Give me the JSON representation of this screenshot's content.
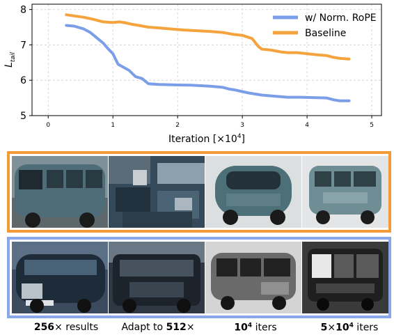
{
  "chart_data": {
    "type": "line",
    "xlabel": "Iteration [×10",
    "xlabel_exp": "4",
    "xlabel_end": "]",
    "ylabel_main": "L",
    "ylabel_sub": "tail",
    "xlim": [
      -0.25,
      5.15
    ],
    "ylim": [
      5.0,
      8.15
    ],
    "xticks": [
      0,
      1,
      2,
      3,
      4,
      5
    ],
    "yticks": [
      5,
      6,
      7,
      8
    ],
    "grid": true,
    "legend_position": "top-right",
    "series": [
      {
        "name": "w/ Norm. RoPE",
        "color": "#7b9ee8",
        "x": [
          0.28,
          0.4,
          0.55,
          0.65,
          0.75,
          0.85,
          0.92,
          1.0,
          1.08,
          1.15,
          1.25,
          1.35,
          1.45,
          1.55,
          1.7,
          1.9,
          2.2,
          2.5,
          2.7,
          2.8,
          2.9,
          3.0,
          3.1,
          3.3,
          3.5,
          3.7,
          3.9,
          4.1,
          4.3,
          4.4,
          4.5,
          4.65
        ],
        "y": [
          7.55,
          7.53,
          7.45,
          7.35,
          7.2,
          7.05,
          6.9,
          6.75,
          6.45,
          6.38,
          6.28,
          6.1,
          6.05,
          5.9,
          5.88,
          5.87,
          5.86,
          5.83,
          5.8,
          5.75,
          5.72,
          5.68,
          5.64,
          5.58,
          5.55,
          5.52,
          5.52,
          5.51,
          5.5,
          5.45,
          5.42,
          5.42
        ]
      },
      {
        "name": "Baseline",
        "color": "#f5a33d",
        "x": [
          0.28,
          0.4,
          0.55,
          0.7,
          0.85,
          1.0,
          1.1,
          1.2,
          1.3,
          1.4,
          1.55,
          1.7,
          1.9,
          2.1,
          2.3,
          2.5,
          2.7,
          2.85,
          3.0,
          3.15,
          3.25,
          3.3,
          3.45,
          3.6,
          3.7,
          3.85,
          4.0,
          4.15,
          4.3,
          4.4,
          4.5,
          4.65
        ],
        "y": [
          7.85,
          7.82,
          7.78,
          7.72,
          7.65,
          7.63,
          7.65,
          7.62,
          7.58,
          7.55,
          7.5,
          7.48,
          7.45,
          7.42,
          7.4,
          7.38,
          7.35,
          7.3,
          7.27,
          7.18,
          6.95,
          6.88,
          6.85,
          6.8,
          6.78,
          6.78,
          6.75,
          6.72,
          6.7,
          6.65,
          6.62,
          6.6
        ]
      }
    ]
  },
  "rows": {
    "baseline_border": "#f29b38",
    "rope_border": "#8aa7ea"
  },
  "captions": {
    "c1_bold": "256",
    "c1_rest": "× results",
    "c2_pre": "Adapt to ",
    "c2_bold": "512",
    "c2_rest": "×",
    "c3_bold": "10",
    "c3_sup": "4",
    "c3_rest": " iters",
    "c4_bold1": "5",
    "c4_mid": "×",
    "c4_bold2": "10",
    "c4_sup": "4",
    "c4_rest": " iters"
  }
}
